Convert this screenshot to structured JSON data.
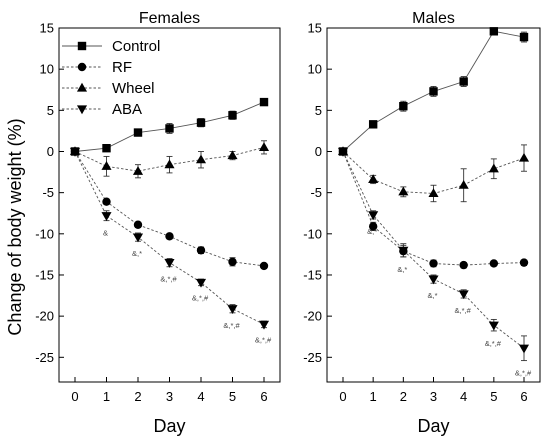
{
  "chart_data": [
    {
      "type": "line",
      "title": "Females",
      "xlabel": "Day",
      "ylabel": "Change of body weight (%)",
      "x": [
        0,
        1,
        2,
        3,
        4,
        5,
        6
      ],
      "xticks": [
        0,
        1,
        2,
        3,
        4,
        5,
        6
      ],
      "ylim": [
        -28,
        15
      ],
      "yticks": [
        -25,
        -20,
        -15,
        -10,
        -5,
        0,
        5,
        10,
        15
      ],
      "legend": "top-left",
      "grid": false,
      "series": [
        {
          "name": "Control",
          "marker": "square",
          "line": "solid",
          "values": [
            0,
            0.4,
            2.3,
            2.8,
            3.5,
            4.4,
            6.0
          ],
          "errors": [
            0,
            0.3,
            0.4,
            0.6,
            0.5,
            0.5,
            0.4
          ]
        },
        {
          "name": "RF",
          "marker": "circle",
          "line": "dashed",
          "values": [
            0,
            -6.1,
            -8.9,
            -10.3,
            -12.0,
            -13.4,
            -13.9
          ],
          "errors": [
            0,
            0.3,
            0.3,
            0.3,
            0.4,
            0.5,
            0.3
          ]
        },
        {
          "name": "Wheel",
          "marker": "triangle-up",
          "line": "dashed",
          "values": [
            0,
            -1.8,
            -2.4,
            -1.6,
            -1.0,
            -0.5,
            0.5
          ],
          "errors": [
            0,
            1.2,
            0.8,
            1.0,
            1.0,
            0.5,
            0.8
          ]
        },
        {
          "name": "ABA",
          "marker": "triangle-down",
          "line": "dashed",
          "values": [
            0,
            -7.8,
            -10.4,
            -13.5,
            -15.9,
            -19.1,
            -21.0
          ],
          "errors": [
            0,
            0.6,
            0.5,
            0.5,
            0.4,
            0.5,
            0.4
          ]
        }
      ],
      "annotations": [
        {
          "x": 1,
          "text": "&"
        },
        {
          "x": 2,
          "text": "&,*"
        },
        {
          "x": 3,
          "text": "&,*,#"
        },
        {
          "x": 4,
          "text": "&,*,#"
        },
        {
          "x": 5,
          "text": "&,*,#"
        },
        {
          "x": 6,
          "text": "&,*,#"
        }
      ]
    },
    {
      "type": "line",
      "title": "Males",
      "xlabel": "Day",
      "ylabel": "",
      "x": [
        0,
        1,
        2,
        3,
        4,
        5,
        6
      ],
      "xticks": [
        0,
        1,
        2,
        3,
        4,
        5,
        6
      ],
      "ylim": [
        -28,
        15
      ],
      "yticks": [
        -25,
        -20,
        -15,
        -10,
        -5,
        0,
        5,
        10,
        15
      ],
      "legend": "none",
      "grid": false,
      "series": [
        {
          "name": "Control",
          "marker": "square",
          "line": "solid",
          "values": [
            0,
            3.3,
            5.5,
            7.3,
            8.5,
            14.6,
            13.9
          ],
          "errors": [
            0,
            0.3,
            0.6,
            0.6,
            0.6,
            0.3,
            0.6
          ]
        },
        {
          "name": "RF",
          "marker": "circle",
          "line": "dashed",
          "values": [
            0,
            -9.1,
            -12.1,
            -13.6,
            -13.8,
            -13.6,
            -13.5
          ],
          "errors": [
            0,
            0.5,
            0.7,
            0.4,
            0.3,
            0.3,
            0.3
          ]
        },
        {
          "name": "Wheel",
          "marker": "triangle-up",
          "line": "dashed",
          "values": [
            0,
            -3.4,
            -4.9,
            -5.1,
            -4.1,
            -2.1,
            -0.8
          ],
          "errors": [
            0,
            0.5,
            0.6,
            1.0,
            2.0,
            1.2,
            1.6
          ]
        },
        {
          "name": "ABA",
          "marker": "triangle-down",
          "line": "dashed",
          "values": [
            0,
            -7.7,
            -12.0,
            -15.5,
            -17.3,
            -21.1,
            -23.9
          ],
          "errors": [
            0,
            0.5,
            0.8,
            0.5,
            0.5,
            0.7,
            1.5
          ]
        }
      ],
      "annotations": [
        {
          "x": 1,
          "text": "&,*"
        },
        {
          "x": 2,
          "text": "&,*"
        },
        {
          "x": 3,
          "text": "&,*"
        },
        {
          "x": 4,
          "text": "&,*,#"
        },
        {
          "x": 5,
          "text": "&,*,#"
        },
        {
          "x": 6,
          "text": "&,*,#"
        }
      ]
    }
  ]
}
